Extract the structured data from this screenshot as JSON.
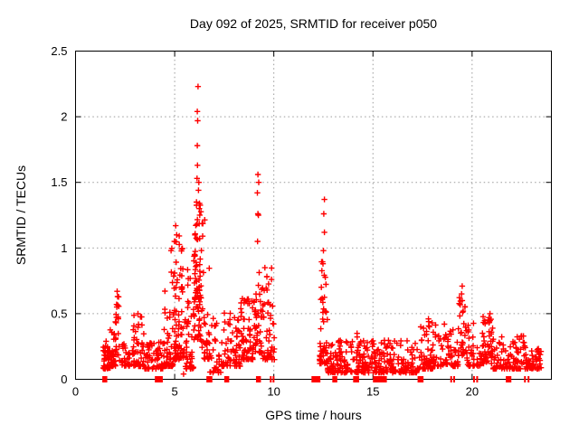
{
  "page": {
    "background": "#ffffff"
  },
  "chart_data": {
    "type": "scatter",
    "title": "Day 092 of 2025, SRMTID for receiver p050",
    "xlabel": "GPS time / hours",
    "ylabel": "SRMTID / TECUs",
    "xlim": [
      0,
      24
    ],
    "ylim": [
      0,
      2.5
    ],
    "xticks": {
      "values": [
        0,
        5,
        10,
        15,
        20
      ],
      "labels": [
        "0",
        "5",
        "10",
        "15",
        "20"
      ]
    },
    "yticks": {
      "values": [
        0,
        0.5,
        1,
        1.5,
        2,
        2.5
      ],
      "labels": [
        "0",
        "0.5",
        "1",
        "1.5",
        "2",
        "2.5"
      ]
    },
    "grid": {
      "show": true,
      "color": "#9a9a9a",
      "dash": "1.5,3.2"
    },
    "axis_color": "#000000",
    "series": [
      {
        "name": "SRMTID",
        "marker": "plus",
        "color": "#ff0000"
      }
    ],
    "legend": {
      "show": false
    },
    "seed": 20250402,
    "data_gap_hours": [
      10.05,
      12.3
    ],
    "spikes": [
      [
        6.18,
        2.23
      ],
      [
        6.14,
        2.04
      ],
      [
        6.16,
        1.97
      ],
      [
        6.14,
        1.78
      ],
      [
        6.15,
        1.63
      ],
      [
        6.13,
        1.53
      ],
      [
        6.22,
        1.5
      ],
      [
        6.2,
        1.44
      ],
      [
        6.1,
        1.35
      ],
      [
        6.24,
        1.3
      ],
      [
        5.05,
        1.17
      ],
      [
        5.1,
        1.1
      ],
      [
        5.0,
        1.05
      ],
      [
        4.82,
        0.98
      ],
      [
        9.2,
        1.56
      ],
      [
        9.24,
        1.5
      ],
      [
        9.17,
        1.42
      ],
      [
        9.2,
        1.26
      ],
      [
        9.22,
        1.25
      ],
      [
        9.18,
        1.05
      ],
      [
        9.55,
        0.85
      ],
      [
        9.65,
        0.78
      ],
      [
        12.55,
        1.37
      ],
      [
        12.52,
        1.26
      ],
      [
        12.55,
        1.12
      ],
      [
        12.5,
        0.98
      ],
      [
        12.48,
        0.88
      ],
      [
        2.1,
        0.67
      ],
      [
        2.12,
        0.63
      ],
      [
        2.08,
        0.55
      ],
      [
        3.15,
        0.5
      ],
      [
        5.45,
        0.04
      ],
      [
        14.2,
        0.35
      ],
      [
        17.8,
        0.46
      ],
      [
        17.85,
        0.4
      ],
      [
        18.6,
        0.42
      ],
      [
        19.5,
        0.71
      ],
      [
        19.47,
        0.65
      ],
      [
        19.5,
        0.6
      ],
      [
        19.52,
        0.51
      ],
      [
        20.9,
        0.5
      ],
      [
        20.85,
        0.47
      ],
      [
        22.5,
        0.33
      ]
    ],
    "clusters": [
      {
        "x0": 1.4,
        "x1": 1.75,
        "n": 45,
        "ylo": 0.08,
        "yhi": 0.3,
        "skew": 2.0
      },
      {
        "x0": 1.75,
        "x1": 2.05,
        "n": 30,
        "ylo": 0.1,
        "yhi": 0.45,
        "skew": 2.2
      },
      {
        "x0": 2.0,
        "x1": 2.2,
        "n": 18,
        "ylo": 0.15,
        "yhi": 0.65,
        "skew": 1.3
      },
      {
        "x0": 2.2,
        "x1": 2.9,
        "n": 30,
        "ylo": 0.1,
        "yhi": 0.28,
        "skew": 2.0
      },
      {
        "x0": 2.9,
        "x1": 3.45,
        "n": 45,
        "ylo": 0.1,
        "yhi": 0.5,
        "skew": 2.6
      },
      {
        "x0": 3.45,
        "x1": 4.4,
        "n": 60,
        "ylo": 0.08,
        "yhi": 0.3,
        "skew": 2.0
      },
      {
        "x0": 4.4,
        "x1": 4.95,
        "n": 55,
        "ylo": 0.1,
        "yhi": 1.0,
        "skew": 3.0
      },
      {
        "x0": 4.95,
        "x1": 5.35,
        "n": 60,
        "ylo": 0.15,
        "yhi": 1.17,
        "skew": 2.2
      },
      {
        "x0": 5.35,
        "x1": 5.95,
        "n": 60,
        "ylo": 0.08,
        "yhi": 1.0,
        "skew": 2.8
      },
      {
        "x0": 5.95,
        "x1": 6.35,
        "n": 85,
        "ylo": 0.3,
        "yhi": 1.4,
        "skew": 1.6
      },
      {
        "x0": 6.35,
        "x1": 6.75,
        "n": 35,
        "ylo": 0.15,
        "yhi": 1.26,
        "skew": 2.4
      },
      {
        "x0": 6.75,
        "x1": 7.35,
        "n": 30,
        "ylo": 0.05,
        "yhi": 0.5,
        "skew": 2.0
      },
      {
        "x0": 7.35,
        "x1": 8.35,
        "n": 70,
        "ylo": 0.1,
        "yhi": 0.55,
        "skew": 2.2
      },
      {
        "x0": 8.35,
        "x1": 9.0,
        "n": 65,
        "ylo": 0.15,
        "yhi": 0.62,
        "skew": 2.0
      },
      {
        "x0": 9.0,
        "x1": 9.4,
        "n": 40,
        "ylo": 0.2,
        "yhi": 0.95,
        "skew": 2.0
      },
      {
        "x0": 9.4,
        "x1": 10.05,
        "n": 55,
        "ylo": 0.15,
        "yhi": 0.85,
        "skew": 2.4
      },
      {
        "x0": 12.3,
        "x1": 12.7,
        "n": 50,
        "ylo": 0.12,
        "yhi": 0.9,
        "skew": 2.0
      },
      {
        "x0": 12.7,
        "x1": 14.0,
        "n": 85,
        "ylo": 0.05,
        "yhi": 0.3,
        "skew": 2.0
      },
      {
        "x0": 14.0,
        "x1": 15.05,
        "n": 75,
        "ylo": 0.05,
        "yhi": 0.33,
        "skew": 2.0
      },
      {
        "x0": 15.05,
        "x1": 17.25,
        "n": 150,
        "ylo": 0.05,
        "yhi": 0.3,
        "skew": 2.2
      },
      {
        "x0": 17.25,
        "x1": 18.05,
        "n": 55,
        "ylo": 0.08,
        "yhi": 0.46,
        "skew": 2.4
      },
      {
        "x0": 18.05,
        "x1": 19.35,
        "n": 75,
        "ylo": 0.1,
        "yhi": 0.42,
        "skew": 2.2
      },
      {
        "x0": 19.35,
        "x1": 19.65,
        "n": 22,
        "ylo": 0.18,
        "yhi": 0.68,
        "skew": 1.8
      },
      {
        "x0": 19.65,
        "x1": 20.45,
        "n": 40,
        "ylo": 0.1,
        "yhi": 0.5,
        "skew": 2.2
      },
      {
        "x0": 20.45,
        "x1": 21.05,
        "n": 50,
        "ylo": 0.12,
        "yhi": 0.5,
        "skew": 1.8
      },
      {
        "x0": 21.05,
        "x1": 22.65,
        "n": 95,
        "ylo": 0.08,
        "yhi": 0.33,
        "skew": 2.2
      },
      {
        "x0": 22.65,
        "x1": 23.5,
        "n": 55,
        "ylo": 0.08,
        "yhi": 0.25,
        "skew": 2.0
      }
    ],
    "zero_runs": [
      [
        1.35,
        1.6
      ],
      [
        4.0,
        4.4
      ],
      [
        6.6,
        6.9
      ],
      [
        7.5,
        7.75
      ],
      [
        9.1,
        9.35
      ],
      [
        9.8,
        9.86
      ],
      [
        9.94,
        10.0
      ],
      [
        11.9,
        12.35
      ],
      [
        12.95,
        13.2
      ],
      [
        14.0,
        14.3
      ],
      [
        15.0,
        15.7
      ],
      [
        17.25,
        17.55
      ],
      [
        18.9,
        18.96
      ],
      [
        19.05,
        19.11
      ],
      [
        20.05,
        20.11
      ],
      [
        20.21,
        20.27
      ],
      [
        21.7,
        21.98
      ],
      [
        22.62,
        22.68
      ],
      [
        22.8,
        22.86
      ]
    ]
  }
}
